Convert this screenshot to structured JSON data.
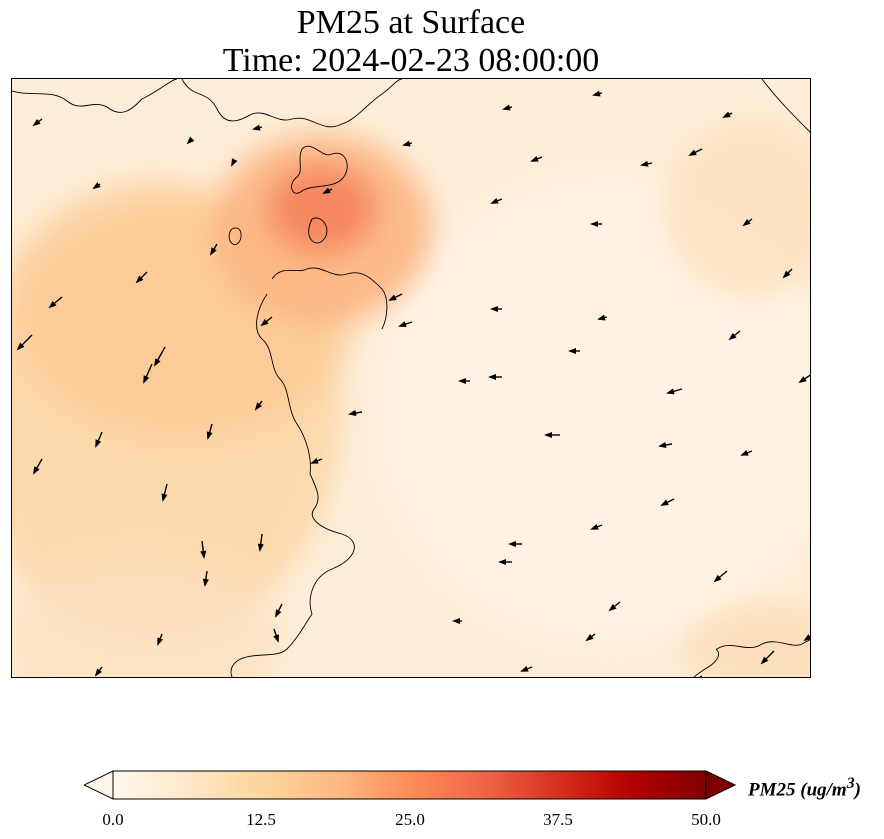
{
  "title": {
    "line1": "PM25 at Surface",
    "line2": "Time: 2024-02-23 08:00:00"
  },
  "colorbar": {
    "label": "PM25 (ug/m",
    "label_sup": "3",
    "label_close": ")",
    "ticks": [
      "0.0",
      "12.5",
      "25.0",
      "37.5",
      "50.0"
    ],
    "colormap": "OrRd",
    "min": 0.0,
    "max": 50.0,
    "extend": "both",
    "colors": [
      "#fff7ec",
      "#fee8c8",
      "#fdd49e",
      "#fdbb84",
      "#fc8d59",
      "#ef6548",
      "#d7301f",
      "#b30000",
      "#7f0000"
    ]
  },
  "map": {
    "field": "PM25",
    "level": "Surface",
    "arrow_color": "#000000",
    "coastline_color": "#000000"
  }
}
